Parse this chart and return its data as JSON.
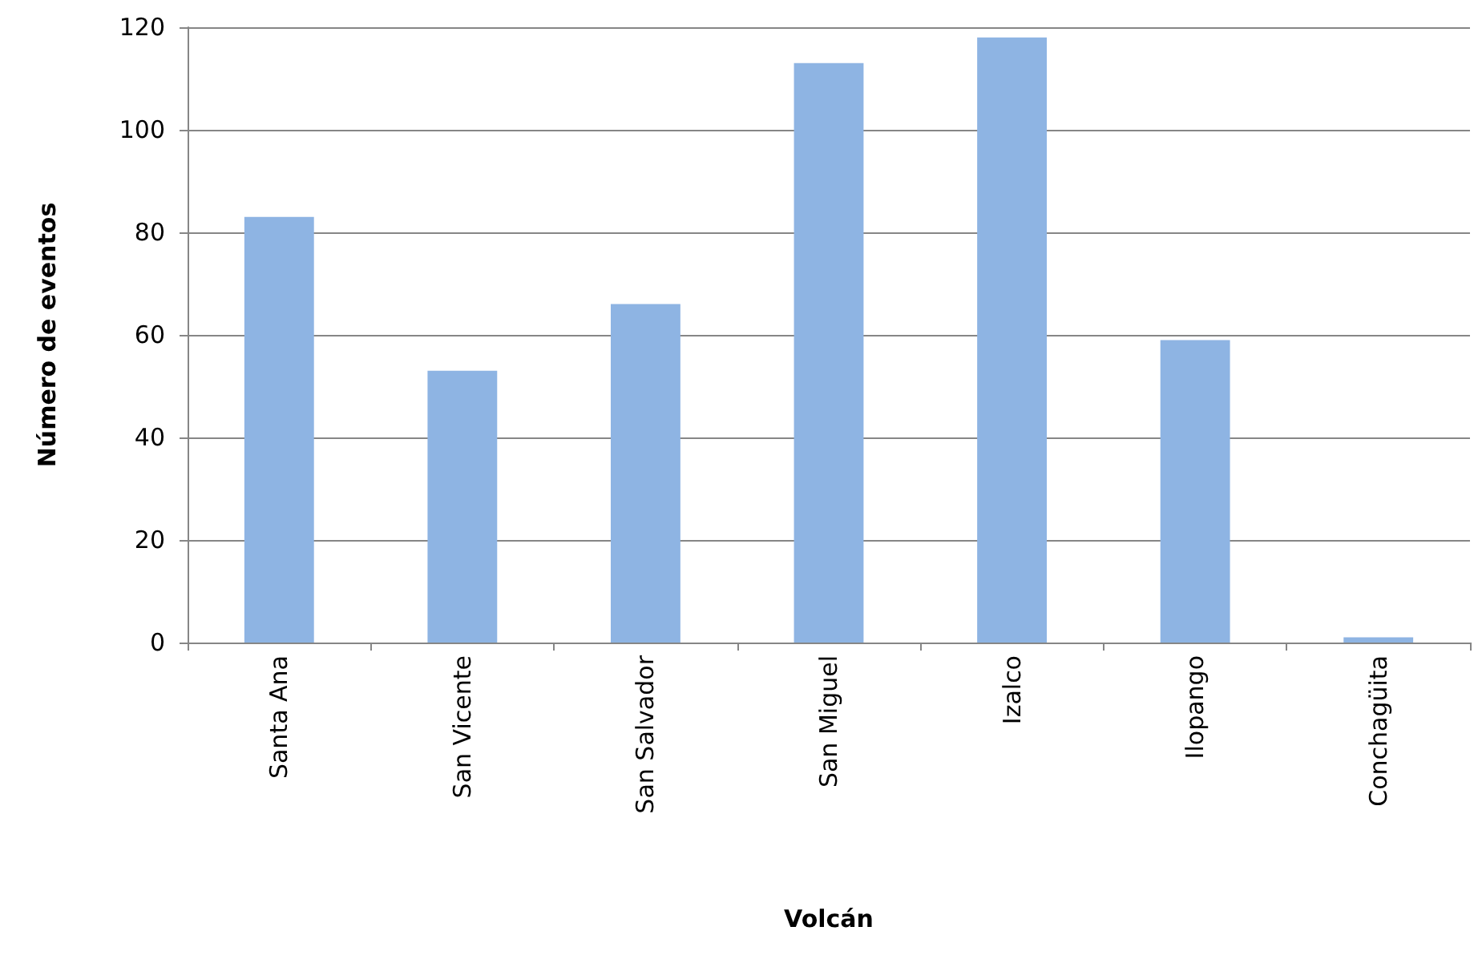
{
  "chart_data": {
    "type": "bar",
    "xlabel": "Volcán",
    "ylabel": "Número de eventos",
    "categories": [
      "Santa Ana",
      "San Vicente",
      "San Salvador",
      "San Miguel",
      "Izalco",
      "Ilopango",
      "Conchagüita"
    ],
    "values": [
      83,
      53,
      66,
      113,
      118,
      59,
      1
    ],
    "color": "#8eb4e3",
    "ylim": [
      0,
      120
    ],
    "yticks": [
      0,
      20,
      40,
      60,
      80,
      100,
      120
    ],
    "grid": "y"
  }
}
